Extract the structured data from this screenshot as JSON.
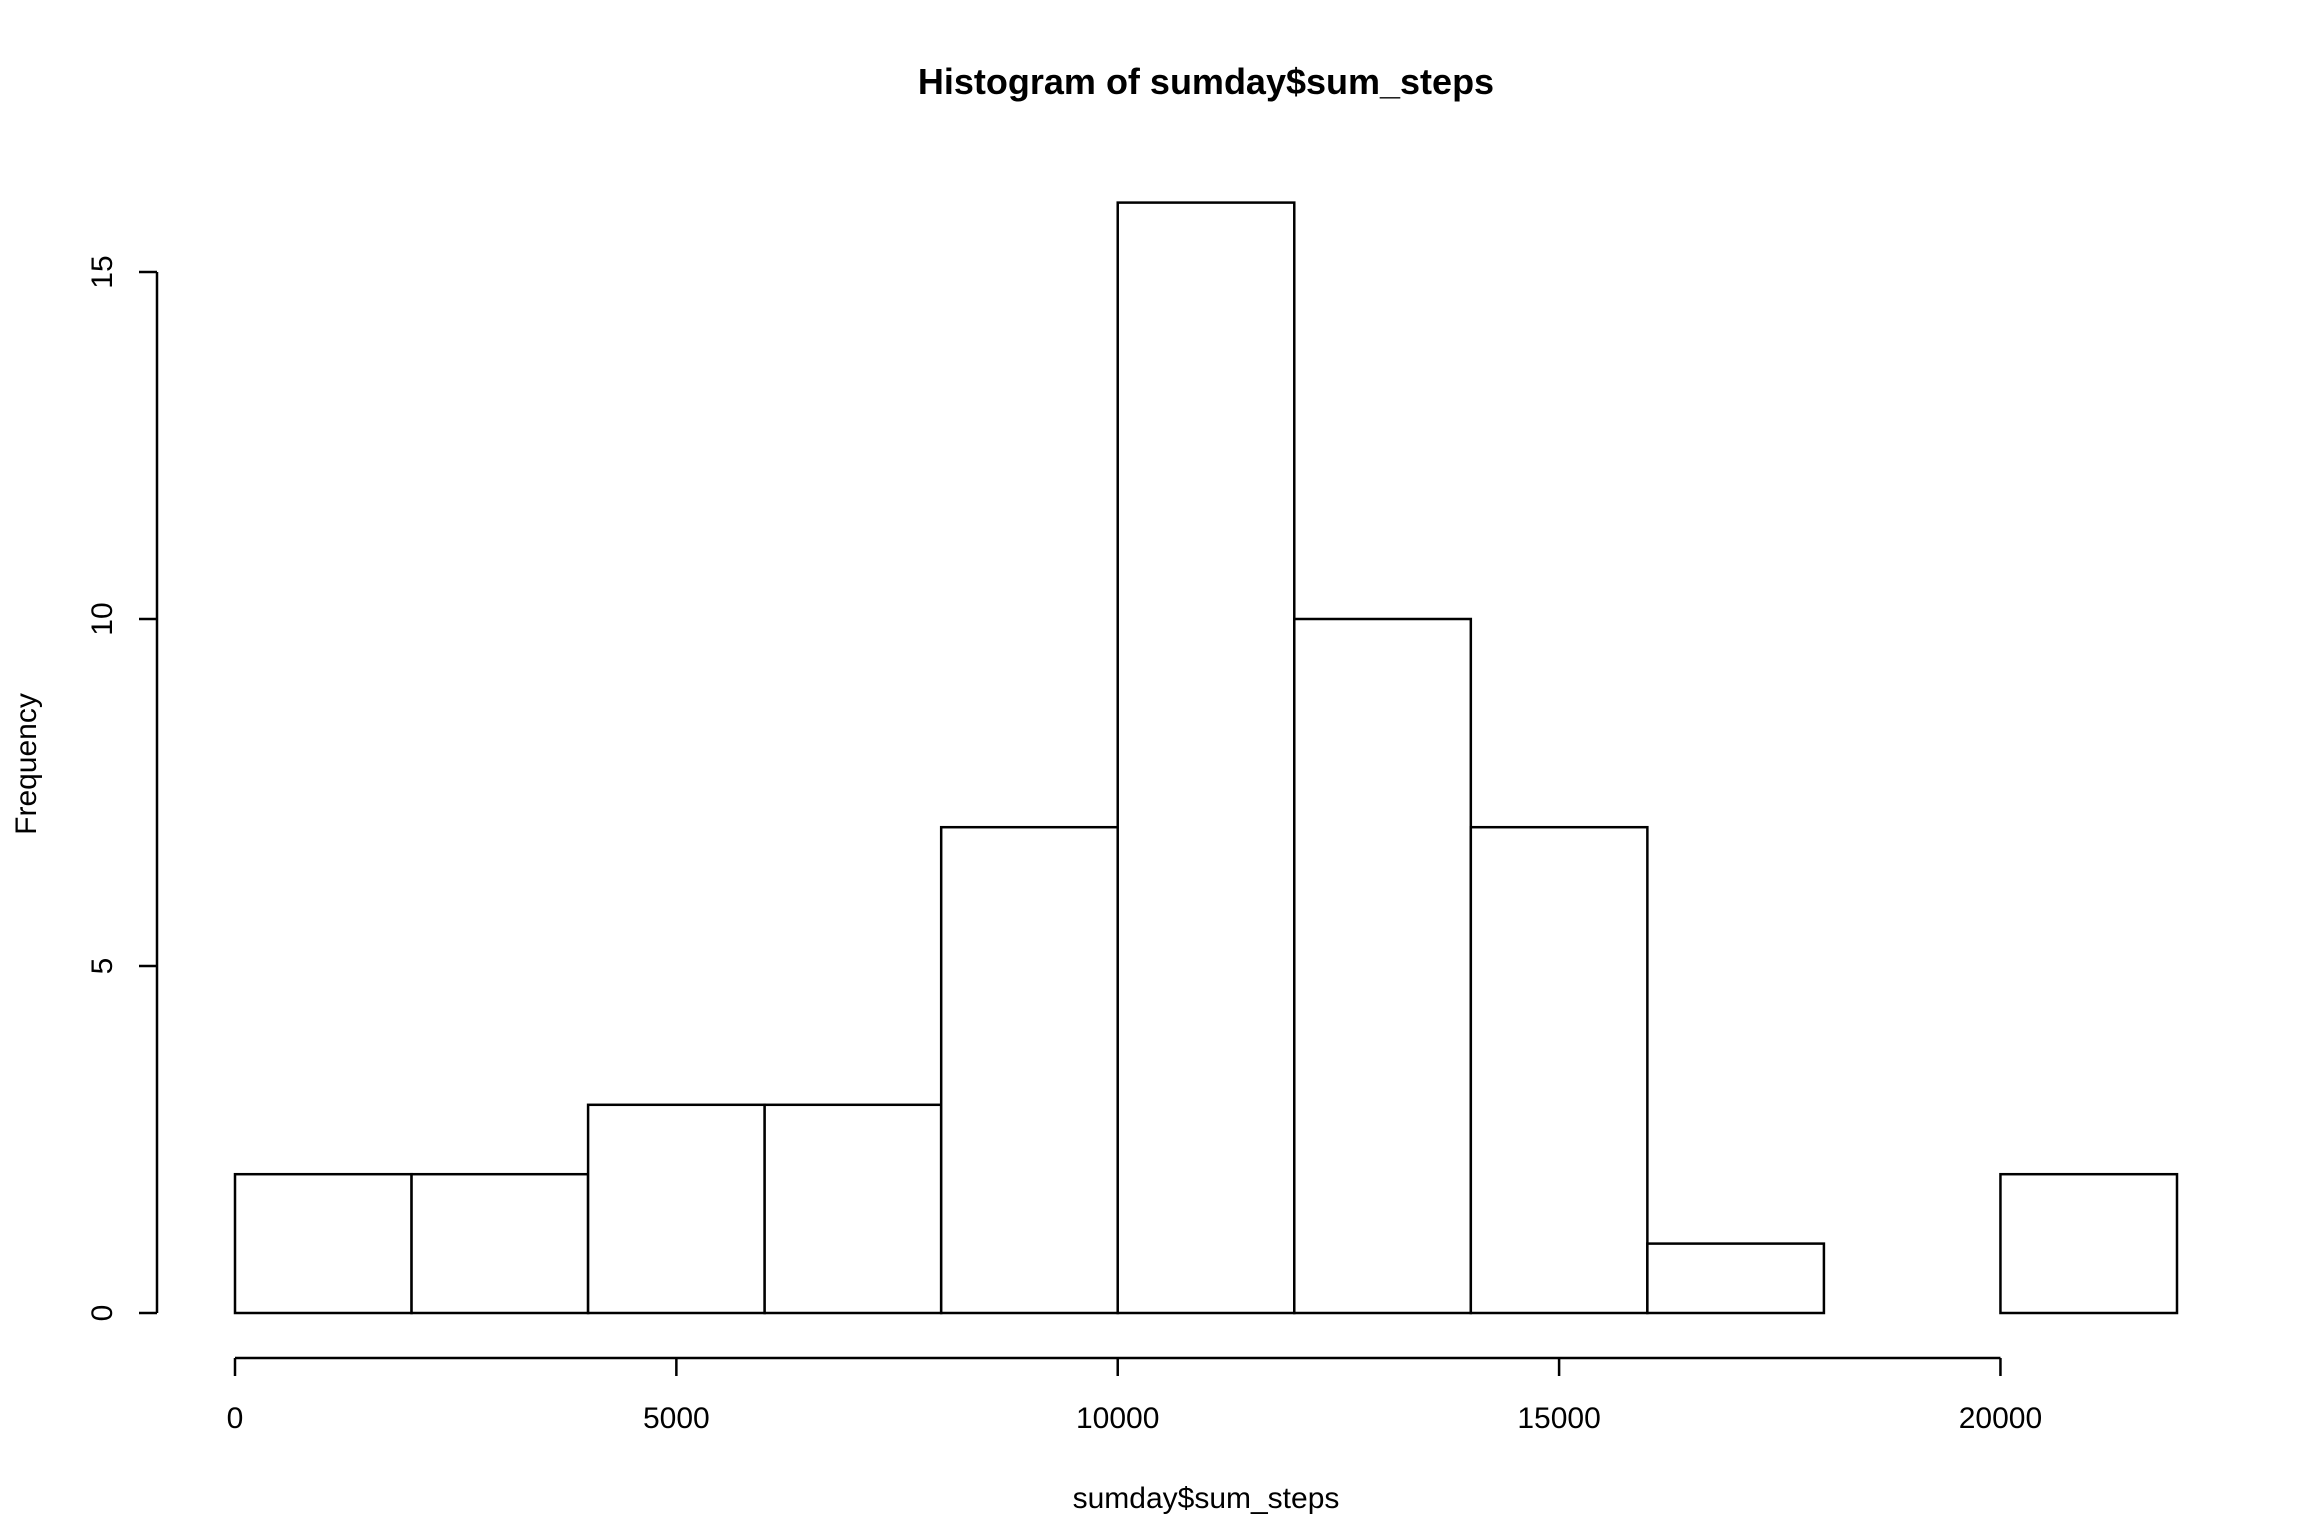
{
  "chart_data": {
    "type": "bar",
    "subtype": "histogram",
    "title": "Histogram of sumday$sum_steps",
    "xlabel": "sumday$sum_steps",
    "ylabel": "Frequency",
    "bins": [
      {
        "from": 0,
        "to": 2000,
        "count": 2
      },
      {
        "from": 2000,
        "to": 4000,
        "count": 2
      },
      {
        "from": 4000,
        "to": 6000,
        "count": 3
      },
      {
        "from": 6000,
        "to": 8000,
        "count": 3
      },
      {
        "from": 8000,
        "to": 10000,
        "count": 7
      },
      {
        "from": 10000,
        "to": 12000,
        "count": 16
      },
      {
        "from": 12000,
        "to": 14000,
        "count": 10
      },
      {
        "from": 14000,
        "to": 16000,
        "count": 7
      },
      {
        "from": 16000,
        "to": 18000,
        "count": 1
      },
      {
        "from": 18000,
        "to": 20000,
        "count": 0
      },
      {
        "from": 20000,
        "to": 22000,
        "count": 2
      }
    ],
    "xlim": [
      0,
      22000
    ],
    "ylim": [
      0,
      16
    ],
    "x_ticks": [
      0,
      5000,
      10000,
      15000,
      20000
    ],
    "y_ticks": [
      0,
      5,
      10,
      15
    ],
    "grid": false,
    "bar_fill": "#ffffff",
    "bar_stroke": "#000000"
  }
}
